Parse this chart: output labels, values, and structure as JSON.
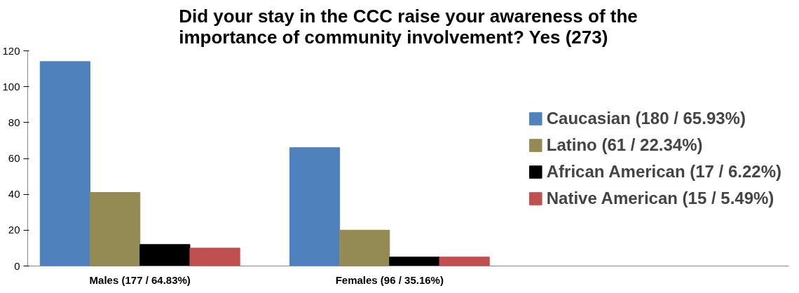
{
  "chart_data": {
    "type": "bar",
    "title": "Did your stay in the CCC raise your awareness of the importance of community involvement? Yes (273)",
    "categories": [
      "Males (177 / 64.83%)",
      "Females (96 / 35.16%)"
    ],
    "series": [
      {
        "name": "Caucasian (180 / 65.93%)",
        "color": "#4f81bd",
        "values": [
          114,
          66
        ]
      },
      {
        "name": "Latino (61 / 22.34%)",
        "color": "#948a54",
        "values": [
          41,
          20
        ]
      },
      {
        "name": "African American (17 / 6.22%)",
        "color": "#000000",
        "values": [
          12,
          5
        ]
      },
      {
        "name": "Native American (15 / 5.49%)",
        "color": "#c0504d",
        "values": [
          10,
          5
        ]
      }
    ],
    "ylim": [
      0,
      120
    ],
    "yticks": [
      0,
      20,
      40,
      60,
      80,
      100,
      120
    ],
    "grid": false,
    "legend": "right"
  }
}
